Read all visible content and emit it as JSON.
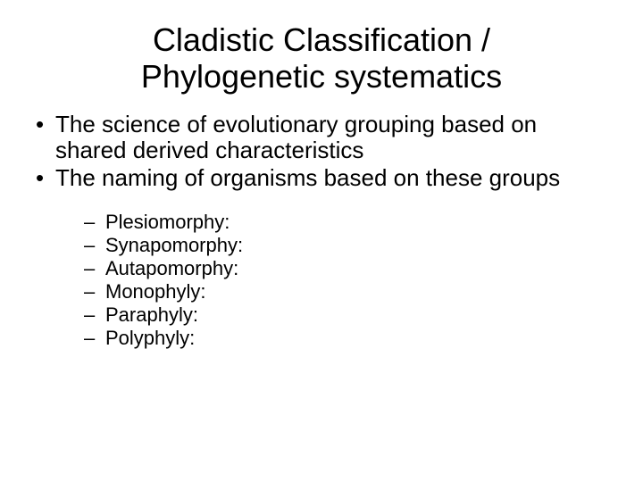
{
  "title_line1": "Cladistic Classification /",
  "title_line2": "Phylogenetic systematics",
  "level1": [
    "The science of evolutionary grouping based on shared derived characteristics",
    "The naming of organisms based on these groups"
  ],
  "level2": [
    "Plesiomorphy:",
    "Synapomorphy:",
    "Autapomorphy:",
    "Monophyly:",
    "Paraphyly:",
    "Polyphyly:"
  ],
  "colors": {
    "background": "#ffffff",
    "text": "#000000"
  },
  "fonts": {
    "family": "Arial",
    "title_size_pt": 36,
    "l1_size_pt": 26,
    "l2_size_pt": 22
  }
}
